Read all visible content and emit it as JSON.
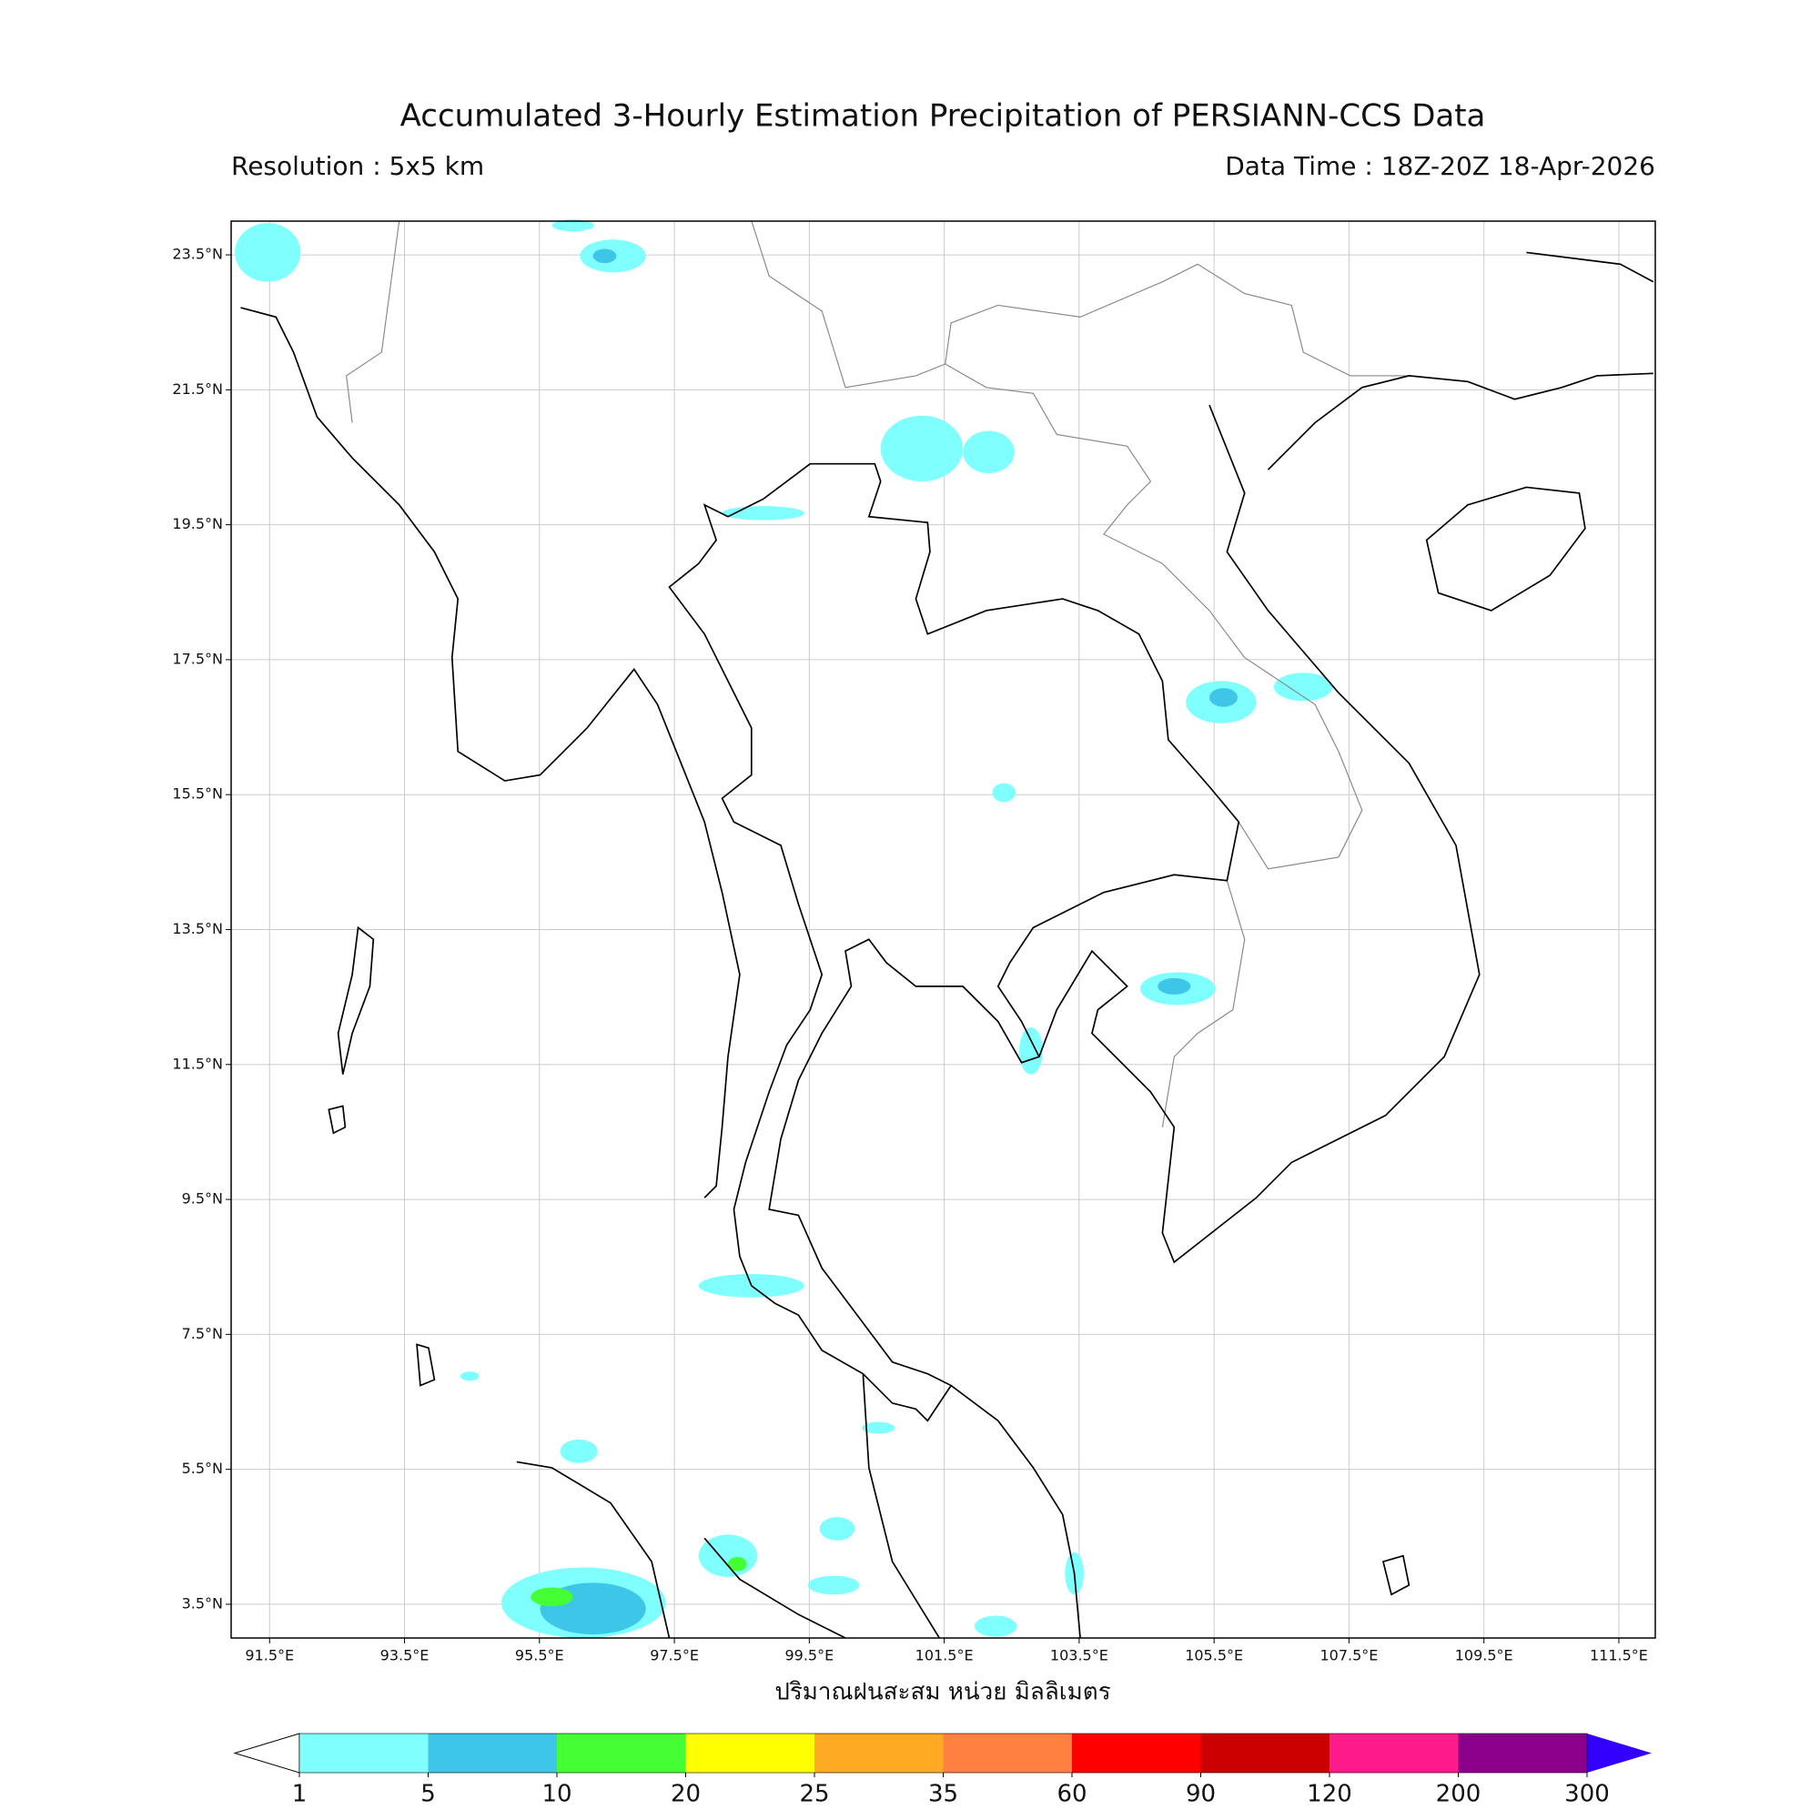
{
  "chart_data": {
    "type": "map",
    "title": "Accumulated 3-Hourly Estimation Precipitation of PERSIANN-CCS Data",
    "subtitle_left": "Resolution : 5x5 km",
    "subtitle_right": "Data Time : 18Z-20Z 18-Apr-2026",
    "xlabel": "ปริมาณฝนสะสม หน่วย มิลลิเมตร",
    "xlim": [
      90.93,
      112.04
    ],
    "ylim": [
      3.0,
      24.0
    ],
    "grid": true,
    "xticks": [
      {
        "value": 91.5,
        "label": "91.5°E"
      },
      {
        "value": 93.5,
        "label": "93.5°E"
      },
      {
        "value": 95.5,
        "label": "95.5°E"
      },
      {
        "value": 97.5,
        "label": "97.5°E"
      },
      {
        "value": 99.5,
        "label": "99.5°E"
      },
      {
        "value": 101.5,
        "label": "101.5°E"
      },
      {
        "value": 103.5,
        "label": "103.5°E"
      },
      {
        "value": 105.5,
        "label": "105.5°E"
      },
      {
        "value": 107.5,
        "label": "107.5°E"
      },
      {
        "value": 109.5,
        "label": "109.5°E"
      },
      {
        "value": 111.5,
        "label": "111.5°E"
      }
    ],
    "yticks": [
      {
        "value": 3.5,
        "label": "3.5°N"
      },
      {
        "value": 5.5,
        "label": "5.5°N"
      },
      {
        "value": 7.5,
        "label": "7.5°N"
      },
      {
        "value": 9.5,
        "label": "9.5°N"
      },
      {
        "value": 11.5,
        "label": "11.5°N"
      },
      {
        "value": 13.5,
        "label": "13.5°N"
      },
      {
        "value": 15.5,
        "label": "15.5°N"
      },
      {
        "value": 17.5,
        "label": "17.5°N"
      },
      {
        "value": 19.5,
        "label": "19.5°N"
      },
      {
        "value": 21.5,
        "label": "21.5°N"
      },
      {
        "value": 23.5,
        "label": "23.5°N"
      }
    ],
    "colorbar": {
      "levels": [
        1,
        5,
        10,
        20,
        25,
        35,
        60,
        90,
        120,
        200,
        300
      ],
      "colors": [
        "#80ffff",
        "#3ec6e8",
        "#44ff33",
        "#ffff00",
        "#ffaa22",
        "#ff8040",
        "#ff0000",
        "#cc0000",
        "#ff1a8c",
        "#8b008b"
      ],
      "under_color": "#ffffff",
      "over_color": "#3300ff"
    }
  }
}
